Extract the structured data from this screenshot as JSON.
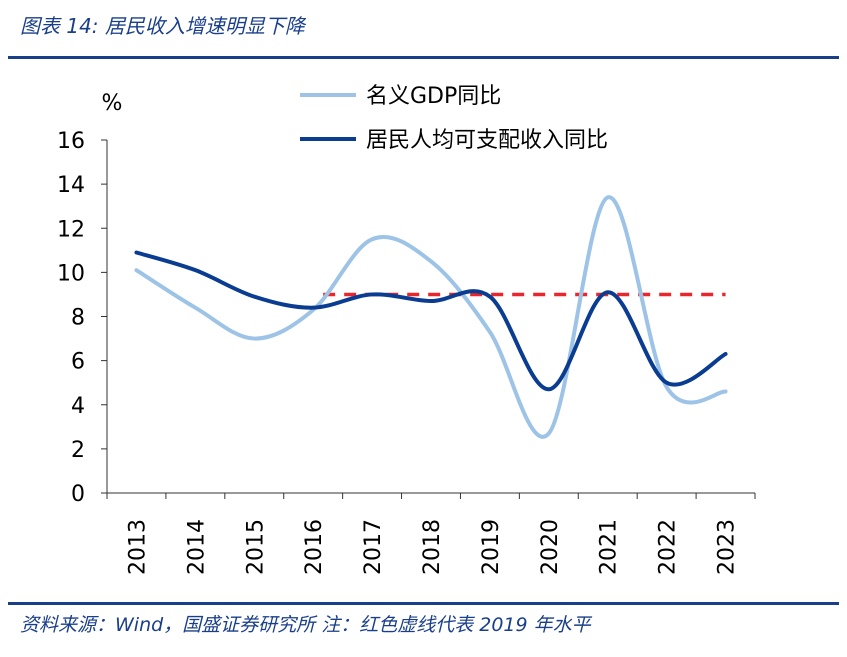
{
  "header": {
    "title": "图表 14:  居民收入增速明显下降"
  },
  "footer": {
    "text": "资料来源：Wind，国盛证券研究所  注：红色虚线代表 2019 年水平"
  },
  "chart_data": {
    "type": "line",
    "y_unit_label": "%",
    "categories": [
      "2013",
      "2014",
      "2015",
      "2016",
      "2017",
      "2018",
      "2019",
      "2020",
      "2021",
      "2022",
      "2023"
    ],
    "ylim": [
      0,
      16
    ],
    "yticks": [
      "0",
      "2",
      "4",
      "6",
      "8",
      "10",
      "12",
      "14",
      "16"
    ],
    "series": [
      {
        "name": "名义GDP同比",
        "color": "#9dc3e6",
        "values": [
          10.1,
          8.4,
          7.0,
          8.3,
          11.5,
          10.5,
          7.3,
          2.7,
          13.4,
          4.8,
          4.6
        ]
      },
      {
        "name": "居民人均可支配收入同比",
        "color": "#0a3d91",
        "values": [
          10.9,
          10.1,
          8.9,
          8.4,
          9.0,
          8.7,
          8.9,
          4.7,
          9.1,
          5.0,
          6.3
        ]
      }
    ],
    "reference_line": {
      "value": 9.0,
      "color": "#e8262b",
      "style": "dashed",
      "from_category": "2016"
    },
    "legend": {
      "position": "top-center"
    },
    "grid": false
  }
}
